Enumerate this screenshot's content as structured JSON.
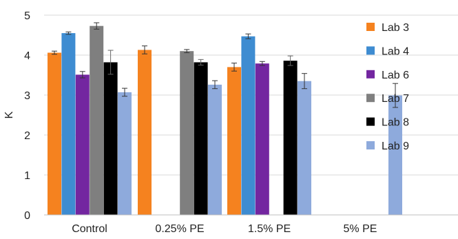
{
  "chart_data": {
    "type": "bar",
    "title": "",
    "xlabel": "",
    "ylabel": "K",
    "ylim": [
      0,
      5
    ],
    "yticks": [
      "0",
      "1",
      "2",
      "3",
      "4",
      "5"
    ],
    "grid": true,
    "legend_position": "right",
    "categories": [
      "Control",
      "0.25% PE",
      "1.5% PE",
      "5% PE"
    ],
    "series": [
      {
        "name": "Lab 3",
        "color": "#F5821F",
        "values": [
          4.06,
          4.13,
          3.7,
          null
        ],
        "errors": [
          0.04,
          0.1,
          0.1,
          null
        ]
      },
      {
        "name": "Lab 4",
        "color": "#3E8CD1",
        "values": [
          4.55,
          null,
          4.47,
          null
        ],
        "errors": [
          0.03,
          null,
          0.06,
          null
        ]
      },
      {
        "name": "Lab 6",
        "color": "#7326A0",
        "values": [
          3.51,
          null,
          3.79,
          null
        ],
        "errors": [
          0.08,
          null,
          0.05,
          null
        ]
      },
      {
        "name": "Lab 7",
        "color": "#7F7F7F",
        "values": [
          4.73,
          4.1,
          null,
          null
        ],
        "errors": [
          0.08,
          0.04,
          null,
          null
        ]
      },
      {
        "name": "Lab 8",
        "color": "#000000",
        "values": [
          3.82,
          3.82,
          3.86,
          null
        ],
        "errors": [
          0.3,
          0.07,
          0.12,
          null
        ]
      },
      {
        "name": "Lab 9",
        "color": "#8EAADC",
        "values": [
          3.07,
          3.26,
          3.35,
          2.99
        ],
        "errors": [
          0.1,
          0.1,
          0.19,
          0.3
        ]
      }
    ]
  }
}
